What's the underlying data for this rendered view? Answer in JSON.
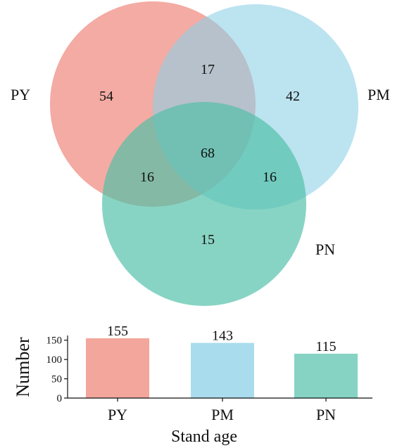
{
  "chart_data": [
    {
      "type": "venn",
      "sets": [
        {
          "name": "PY",
          "color": "#ee8b7f"
        },
        {
          "name": "PM",
          "color": "#8fd0e6"
        },
        {
          "name": "PN",
          "color": "#4fbfa8"
        }
      ],
      "regions": {
        "PY_only": "54",
        "PM_only": "42",
        "PN_only": "15",
        "PY_PM": "17",
        "PY_PN": "16",
        "PM_PN": "16",
        "PY_PM_PN": "68"
      }
    },
    {
      "type": "bar",
      "categories": [
        "PY",
        "PM",
        "PN"
      ],
      "values": [
        155,
        143,
        115
      ],
      "value_labels": [
        "155",
        "143",
        "115"
      ],
      "colors": [
        "#f3a69b",
        "#a9dced",
        "#86d3c4"
      ],
      "xlabel": "Stand age",
      "ylabel": "Number",
      "ylim": [
        0,
        155
      ],
      "yticks": [
        0,
        50,
        100,
        150
      ],
      "ytick_labels": [
        "0",
        "50",
        "100",
        "150"
      ],
      "grid": false
    }
  ]
}
